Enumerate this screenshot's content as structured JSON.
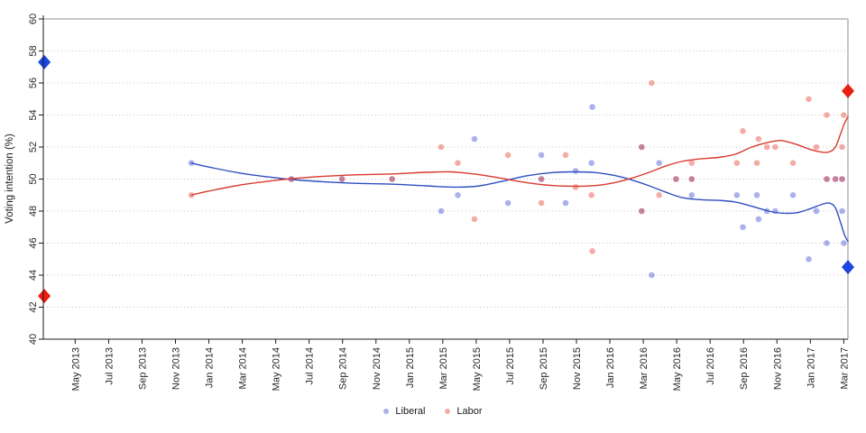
{
  "chart_data": {
    "type": "scatter",
    "title": "",
    "xlabel": "",
    "ylabel": "Voting intention (%)",
    "ylim": [
      40,
      60
    ],
    "y_ticks": [
      40,
      42,
      44,
      46,
      48,
      50,
      52,
      54,
      56,
      58,
      60
    ],
    "x_unit": "months since May 2013 (tick every 2 months)",
    "x_range_months": [
      -1.91,
      46.25
    ],
    "x_tick_labels": [
      "May 2013",
      "Jul 2013",
      "Sep 2013",
      "Nov 2013",
      "Jan 2014",
      "Mar 2014",
      "May 2014",
      "Jul 2014",
      "Sep 2014",
      "Nov 2014",
      "Jan 2015",
      "Mar 2015",
      "May 2015",
      "Jul 2015",
      "Sep 2015",
      "Nov 2015",
      "Jan 2016",
      "Mar 2016",
      "May 2016",
      "Jul 2016",
      "Sep 2016",
      "Nov 2016",
      "Jan 2017",
      "Mar 2017"
    ],
    "x_tick_interval_months": 2,
    "grid": "dotted horizontal gridlines at each y tick, solid grey top and right border",
    "legend": {
      "position": "bottom center",
      "entries": [
        {
          "label": "Liberal",
          "color": "rgba(64,84,210,0.45)"
        },
        {
          "label": "Labor",
          "color": "rgba(232,72,60,0.45)"
        }
      ]
    },
    "series": [
      {
        "name": "Liberal",
        "line_color": "#2e4fc0",
        "point_color": "rgba(64,84,210,0.45)",
        "points": [
          [
            6.95,
            51
          ],
          [
            12.94,
            50
          ],
          [
            15.97,
            50
          ],
          [
            18.97,
            50
          ],
          [
            21.9,
            48
          ],
          [
            22.9,
            49
          ],
          [
            23.9,
            52.5
          ],
          [
            25.9,
            48.5
          ],
          [
            27.9,
            51.5
          ],
          [
            27.9,
            50
          ],
          [
            29.35,
            48.5
          ],
          [
            29.95,
            50.5
          ],
          [
            30.9,
            51
          ],
          [
            30.95,
            54.5
          ],
          [
            33.9,
            52
          ],
          [
            33.9,
            48
          ],
          [
            34.5,
            44
          ],
          [
            34.95,
            51
          ],
          [
            35.96,
            50
          ],
          [
            36.9,
            50
          ],
          [
            36.9,
            49
          ],
          [
            39.6,
            49
          ],
          [
            39.96,
            47
          ],
          [
            40.8,
            49
          ],
          [
            40.9,
            47.5
          ],
          [
            41.4,
            48
          ],
          [
            41.9,
            48
          ],
          [
            42.96,
            49
          ],
          [
            43.9,
            45
          ],
          [
            44.36,
            48
          ],
          [
            44.98,
            46
          ],
          [
            44.98,
            50
          ],
          [
            45.5,
            50
          ],
          [
            45.9,
            50
          ],
          [
            45.9,
            48
          ],
          [
            46.0,
            46
          ]
        ],
        "trend": [
          [
            6.95,
            51.0
          ],
          [
            8,
            50.75
          ],
          [
            10,
            50.35
          ],
          [
            12,
            50.08
          ],
          [
            13,
            49.97
          ],
          [
            15,
            49.82
          ],
          [
            17,
            49.73
          ],
          [
            19,
            49.68
          ],
          [
            21,
            49.58
          ],
          [
            22.5,
            49.5
          ],
          [
            24,
            49.55
          ],
          [
            25.5,
            49.85
          ],
          [
            27,
            50.2
          ],
          [
            28.5,
            50.4
          ],
          [
            30,
            50.45
          ],
          [
            31.2,
            50.4
          ],
          [
            32.3,
            50.22
          ],
          [
            33.3,
            49.95
          ],
          [
            34.3,
            49.6
          ],
          [
            35.3,
            49.2
          ],
          [
            36.3,
            48.85
          ],
          [
            37.3,
            48.72
          ],
          [
            38.5,
            48.67
          ],
          [
            39.5,
            48.57
          ],
          [
            40.5,
            48.3
          ],
          [
            41.5,
            48.0
          ],
          [
            42.3,
            47.87
          ],
          [
            43.2,
            47.9
          ],
          [
            44.0,
            48.15
          ],
          [
            44.7,
            48.42
          ],
          [
            45.15,
            48.5
          ],
          [
            45.5,
            48.2
          ],
          [
            45.8,
            47.3
          ],
          [
            46.05,
            46.5
          ],
          [
            46.25,
            46.1
          ]
        ],
        "election_results": [
          {
            "m": -1.85,
            "value": 57.3,
            "marker_color": "#1c46e0"
          },
          {
            "m": 46.25,
            "value": 44.5,
            "marker_color": "#1c46e0"
          }
        ]
      },
      {
        "name": "Labor",
        "line_color": "#d8392e",
        "point_color": "rgba(232,72,60,0.45)",
        "points": [
          [
            6.95,
            49
          ],
          [
            12.94,
            50
          ],
          [
            15.97,
            50
          ],
          [
            18.97,
            50
          ],
          [
            21.9,
            52
          ],
          [
            22.9,
            51
          ],
          [
            23.9,
            47.5
          ],
          [
            25.9,
            51.5
          ],
          [
            27.9,
            48.5
          ],
          [
            27.9,
            50
          ],
          [
            29.35,
            51.5
          ],
          [
            29.95,
            49.5
          ],
          [
            30.9,
            49
          ],
          [
            30.95,
            45.5
          ],
          [
            33.9,
            48
          ],
          [
            33.9,
            52
          ],
          [
            34.5,
            56
          ],
          [
            34.95,
            49
          ],
          [
            35.96,
            50
          ],
          [
            36.9,
            50
          ],
          [
            36.9,
            51
          ],
          [
            39.6,
            51
          ],
          [
            39.96,
            53
          ],
          [
            40.8,
            51
          ],
          [
            40.9,
            52.5
          ],
          [
            41.4,
            52
          ],
          [
            41.9,
            52
          ],
          [
            42.96,
            51
          ],
          [
            43.9,
            55
          ],
          [
            44.36,
            52
          ],
          [
            44.98,
            54
          ],
          [
            44.98,
            50
          ],
          [
            45.5,
            50
          ],
          [
            45.9,
            50
          ],
          [
            45.9,
            52
          ],
          [
            46.0,
            54
          ]
        ],
        "trend": [
          [
            6.95,
            49.0
          ],
          [
            8,
            49.25
          ],
          [
            10,
            49.65
          ],
          [
            12,
            49.92
          ],
          [
            13,
            50.03
          ],
          [
            15,
            50.18
          ],
          [
            17,
            50.27
          ],
          [
            19,
            50.32
          ],
          [
            21,
            50.42
          ],
          [
            22.5,
            50.45
          ],
          [
            24,
            50.3
          ],
          [
            25.5,
            50.05
          ],
          [
            27,
            49.78
          ],
          [
            28.5,
            49.6
          ],
          [
            30,
            49.55
          ],
          [
            31.2,
            49.6
          ],
          [
            32.3,
            49.78
          ],
          [
            33.3,
            50.05
          ],
          [
            34.3,
            50.4
          ],
          [
            35.3,
            50.8
          ],
          [
            36.3,
            51.1
          ],
          [
            37.3,
            51.25
          ],
          [
            38.5,
            51.35
          ],
          [
            39.5,
            51.55
          ],
          [
            40.5,
            52.0
          ],
          [
            41.5,
            52.3
          ],
          [
            42.3,
            52.4
          ],
          [
            43.2,
            52.15
          ],
          [
            44.0,
            51.85
          ],
          [
            44.7,
            51.68
          ],
          [
            45.15,
            51.7
          ],
          [
            45.5,
            52.0
          ],
          [
            45.8,
            52.8
          ],
          [
            46.05,
            53.5
          ],
          [
            46.25,
            53.9
          ]
        ],
        "election_results": [
          {
            "m": -1.85,
            "value": 42.7,
            "marker_color": "#ea1f12"
          },
          {
            "m": 46.25,
            "value": 55.5,
            "marker_color": "#ea1f12"
          }
        ]
      }
    ],
    "style": {
      "grid_color": "#c2c2c2",
      "border_color": "#b3b3b3",
      "axis_color": "#1a1a1a",
      "point_radius": 3.3,
      "line_width": 1.4
    }
  }
}
